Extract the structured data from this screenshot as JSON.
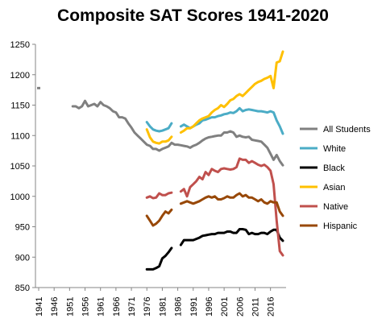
{
  "chart_data": {
    "type": "line",
    "title": "Composite SAT Scores 1941-2020",
    "xlabel": "",
    "ylabel": "",
    "xlim": [
      1941,
      2020
    ],
    "ylim": [
      850,
      1250
    ],
    "y_ticks": [
      850,
      900,
      950,
      1000,
      1050,
      1100,
      1150,
      1200,
      1250
    ],
    "x_ticks": [
      1941,
      1946,
      1951,
      1956,
      1961,
      1966,
      1971,
      1976,
      1981,
      1986,
      1991,
      1996,
      2001,
      2006,
      2011,
      2016
    ],
    "grid": false,
    "legend": "right",
    "series": [
      {
        "name": "All Students",
        "color": "#808080",
        "x": [
          1941,
          1952,
          1953,
          1954,
          1955,
          1956,
          1957,
          1958,
          1959,
          1960,
          1961,
          1962,
          1963,
          1964,
          1965,
          1966,
          1967,
          1968,
          1969,
          1970,
          1971,
          1972,
          1973,
          1974,
          1975,
          1976,
          1977,
          1978,
          1979,
          1980,
          1981,
          1982,
          1983,
          1984,
          1985,
          1986,
          1987,
          1988,
          1989,
          1990,
          1991,
          1992,
          1993,
          1994,
          1995,
          1996,
          1997,
          1998,
          1999,
          2000,
          2001,
          2002,
          2003,
          2004,
          2005,
          2006,
          2007,
          2008,
          2009,
          2010,
          2011,
          2012,
          2013,
          2014,
          2015,
          2016,
          2017,
          2018,
          2019,
          2020
        ],
        "y": [
          1178,
          1148,
          1148,
          1145,
          1148,
          1157,
          1148,
          1150,
          1152,
          1148,
          1155,
          1150,
          1148,
          1145,
          1140,
          1138,
          1130,
          1130,
          1128,
          1120,
          1113,
          1105,
          1100,
          1095,
          1090,
          1085,
          1083,
          1078,
          1078,
          1075,
          1078,
          1080,
          1082,
          1088,
          1085,
          1085,
          1084,
          1083,
          1082,
          1080,
          1083,
          1085,
          1088,
          1092,
          1095,
          1097,
          1098,
          1099,
          1100,
          1100,
          1105,
          1105,
          1107,
          1105,
          1098,
          1100,
          1098,
          1097,
          1098,
          1093,
          1092,
          1091,
          1090,
          1085,
          1080,
          1070,
          1060,
          1068,
          1058,
          1051
        ]
      },
      {
        "name": "White",
        "color": "#4BACC6",
        "x": [
          1976,
          1977,
          1978,
          1979,
          1980,
          1981,
          1982,
          1983,
          1984,
          null,
          1987,
          1988,
          1989,
          1990,
          1991,
          1992,
          1993,
          1994,
          1995,
          1996,
          1997,
          1998,
          1999,
          2000,
          2001,
          2002,
          2003,
          2004,
          2005,
          2006,
          2007,
          2008,
          2009,
          2010,
          2011,
          2012,
          2013,
          2014,
          2015,
          2016,
          2017,
          2018,
          2019,
          2020
        ],
        "y": [
          1122,
          1115,
          1110,
          1108,
          1107,
          1108,
          1110,
          1112,
          1120,
          null,
          1115,
          1118,
          1115,
          1112,
          1115,
          1118,
          1120,
          1125,
          1126,
          1128,
          1130,
          1130,
          1132,
          1133,
          1135,
          1136,
          1138,
          1137,
          1140,
          1145,
          1140,
          1142,
          1143,
          1142,
          1141,
          1140,
          1140,
          1139,
          1138,
          1140,
          1138,
          1125,
          1115,
          1103
        ]
      },
      {
        "name": "Black",
        "color": "#000000",
        "x": [
          1976,
          1977,
          1978,
          1979,
          1980,
          1981,
          1982,
          1983,
          1984,
          null,
          1987,
          1988,
          1989,
          1990,
          1991,
          1992,
          1993,
          1994,
          1995,
          1996,
          1997,
          1998,
          1999,
          2000,
          2001,
          2002,
          2003,
          2004,
          2005,
          2006,
          2007,
          2008,
          2009,
          2010,
          2011,
          2012,
          2013,
          2014,
          2015,
          2016,
          2017,
          2018,
          2019,
          2020
        ],
        "y": [
          880,
          880,
          880,
          882,
          885,
          898,
          902,
          908,
          915,
          null,
          920,
          928,
          928,
          928,
          928,
          930,
          932,
          935,
          936,
          937,
          938,
          938,
          940,
          940,
          940,
          942,
          942,
          940,
          940,
          946,
          946,
          945,
          938,
          940,
          938,
          938,
          940,
          940,
          938,
          942,
          945,
          945,
          932,
          927
        ]
      },
      {
        "name": "Asian",
        "color": "#FFC000",
        "x": [
          1976,
          1977,
          1978,
          1979,
          1980,
          1981,
          1982,
          1983,
          1984,
          null,
          1987,
          1988,
          1989,
          1990,
          1991,
          1992,
          1993,
          1994,
          1995,
          1996,
          1997,
          1998,
          1999,
          2000,
          2001,
          2002,
          2003,
          2004,
          2005,
          2006,
          2007,
          2008,
          2009,
          2010,
          2011,
          2012,
          2013,
          2014,
          2015,
          2016,
          2017,
          2018,
          2019,
          2020
        ],
        "y": [
          1110,
          1097,
          1090,
          1088,
          1087,
          1090,
          1090,
          1092,
          1098,
          null,
          1105,
          1108,
          1112,
          1112,
          1115,
          1120,
          1125,
          1128,
          1130,
          1132,
          1138,
          1142,
          1145,
          1150,
          1147,
          1152,
          1158,
          1160,
          1165,
          1168,
          1165,
          1170,
          1175,
          1180,
          1185,
          1188,
          1190,
          1193,
          1195,
          1198,
          1178,
          1220,
          1222,
          1238
        ]
      },
      {
        "name": "Native",
        "color": "#C0504D",
        "x": [
          1976,
          1977,
          1978,
          1979,
          1980,
          1981,
          1982,
          1983,
          1984,
          null,
          1987,
          1988,
          1989,
          1990,
          1991,
          1992,
          1993,
          1994,
          1995,
          1996,
          1997,
          1998,
          1999,
          2000,
          2001,
          2002,
          2003,
          2004,
          2005,
          2006,
          2007,
          2008,
          2009,
          2010,
          2011,
          2012,
          2013,
          2014,
          2015,
          2016,
          2017,
          2018,
          2019,
          2020
        ],
        "y": [
          998,
          1000,
          997,
          998,
          1005,
          1002,
          1002,
          1005,
          1006,
          null,
          1008,
          1012,
          1000,
          1015,
          1020,
          1025,
          1032,
          1028,
          1040,
          1035,
          1045,
          1042,
          1040,
          1045,
          1046,
          1045,
          1044,
          1045,
          1048,
          1062,
          1060,
          1060,
          1055,
          1058,
          1055,
          1052,
          1050,
          1052,
          1048,
          1042,
          1020,
          960,
          910,
          903
        ]
      },
      {
        "name": "Hispanic",
        "color": "#984807",
        "x": [
          1976,
          1977,
          1978,
          1979,
          1980,
          1981,
          1982,
          1983,
          1984,
          null,
          1987,
          1988,
          1989,
          1990,
          1991,
          1992,
          1993,
          1994,
          1995,
          1996,
          1997,
          1998,
          1999,
          2000,
          2001,
          2002,
          2003,
          2004,
          2005,
          2006,
          2007,
          2008,
          2009,
          2010,
          2011,
          2012,
          2013,
          2014,
          2015,
          2016,
          2017,
          2018,
          2019,
          2020
        ],
        "y": [
          968,
          960,
          952,
          955,
          960,
          968,
          975,
          972,
          978,
          null,
          988,
          990,
          992,
          990,
          988,
          990,
          992,
          995,
          998,
          1000,
          998,
          1000,
          995,
          995,
          997,
          1000,
          998,
          998,
          1002,
          1005,
          1000,
          1002,
          998,
          998,
          995,
          992,
          995,
          990,
          988,
          992,
          990,
          990,
          975,
          968
        ]
      }
    ]
  }
}
